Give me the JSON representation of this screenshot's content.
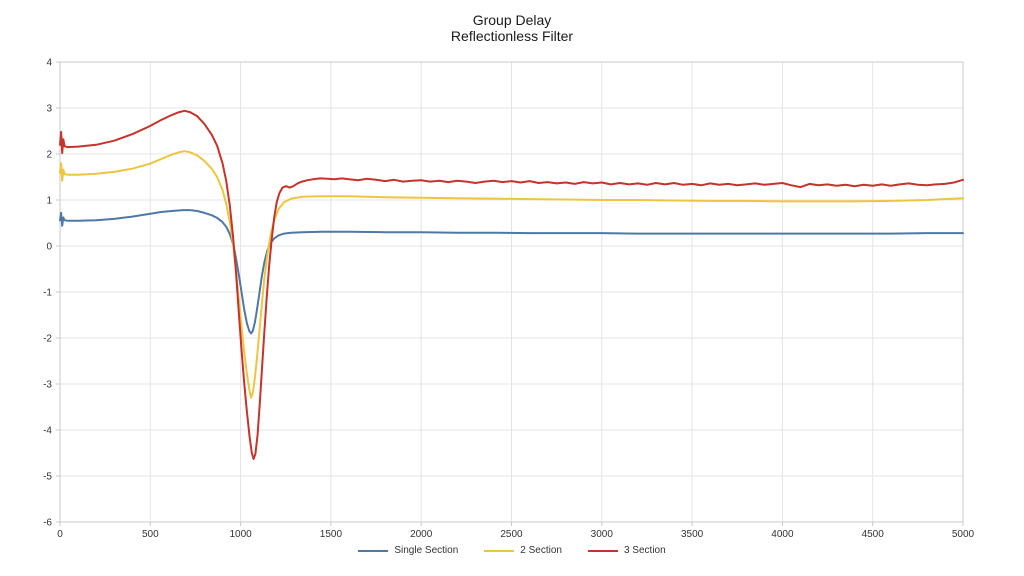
{
  "title": {
    "line1": "Group Delay",
    "line2": "Reflectionless Filter"
  },
  "colors": {
    "grid": "#e4e4e4",
    "axis_border": "#c9c9c9",
    "tick_label": "#333333",
    "title_text": "#1a1a1a",
    "series_blue": "#4e79a7",
    "series_yellow": "#edc53f",
    "series_red": "#c5332d"
  },
  "chart_data": {
    "type": "line",
    "title": "Group Delay",
    "subtitle": "Reflectionless Filter",
    "xlabel": "",
    "ylabel": "",
    "xlim": [
      0,
      5000
    ],
    "ylim": [
      -6,
      4
    ],
    "x_ticks": [
      0,
      500,
      1000,
      1500,
      2000,
      2500,
      3000,
      3500,
      4000,
      4500,
      5000
    ],
    "y_ticks": [
      -6,
      -5,
      -4,
      -3,
      -2,
      -1,
      0,
      1,
      2,
      3,
      4
    ],
    "grid": true,
    "legend_position": "bottom",
    "series": [
      {
        "name": "Single Section",
        "color": "#4e79a7",
        "points": [
          [
            0,
            0.56
          ],
          [
            6,
            0.72
          ],
          [
            12,
            0.44
          ],
          [
            18,
            0.62
          ],
          [
            25,
            0.56
          ],
          [
            40,
            0.55
          ],
          [
            100,
            0.55
          ],
          [
            200,
            0.56
          ],
          [
            300,
            0.59
          ],
          [
            400,
            0.64
          ],
          [
            500,
            0.7
          ],
          [
            560,
            0.74
          ],
          [
            620,
            0.76
          ],
          [
            680,
            0.78
          ],
          [
            720,
            0.78
          ],
          [
            760,
            0.76
          ],
          [
            800,
            0.72
          ],
          [
            840,
            0.67
          ],
          [
            870,
            0.61
          ],
          [
            900,
            0.52
          ],
          [
            920,
            0.42
          ],
          [
            940,
            0.26
          ],
          [
            960,
            0.02
          ],
          [
            975,
            -0.28
          ],
          [
            990,
            -0.62
          ],
          [
            1005,
            -1.0
          ],
          [
            1020,
            -1.38
          ],
          [
            1035,
            -1.68
          ],
          [
            1048,
            -1.85
          ],
          [
            1058,
            -1.9
          ],
          [
            1068,
            -1.84
          ],
          [
            1080,
            -1.65
          ],
          [
            1092,
            -1.35
          ],
          [
            1105,
            -1.0
          ],
          [
            1118,
            -0.65
          ],
          [
            1132,
            -0.35
          ],
          [
            1148,
            -0.1
          ],
          [
            1165,
            0.06
          ],
          [
            1185,
            0.16
          ],
          [
            1210,
            0.23
          ],
          [
            1240,
            0.27
          ],
          [
            1280,
            0.29
          ],
          [
            1340,
            0.3
          ],
          [
            1450,
            0.31
          ],
          [
            1600,
            0.31
          ],
          [
            1800,
            0.3
          ],
          [
            2000,
            0.3
          ],
          [
            2200,
            0.29
          ],
          [
            2400,
            0.29
          ],
          [
            2600,
            0.28
          ],
          [
            2800,
            0.28
          ],
          [
            3000,
            0.28
          ],
          [
            3200,
            0.27
          ],
          [
            3400,
            0.27
          ],
          [
            3600,
            0.27
          ],
          [
            3800,
            0.27
          ],
          [
            4000,
            0.27
          ],
          [
            4200,
            0.27
          ],
          [
            4400,
            0.27
          ],
          [
            4600,
            0.27
          ],
          [
            4800,
            0.28
          ],
          [
            5000,
            0.28
          ]
        ]
      },
      {
        "name": "2 Section",
        "color": "#edc53f",
        "points": [
          [
            0,
            1.58
          ],
          [
            6,
            1.8
          ],
          [
            12,
            1.42
          ],
          [
            18,
            1.66
          ],
          [
            25,
            1.57
          ],
          [
            40,
            1.55
          ],
          [
            100,
            1.55
          ],
          [
            200,
            1.57
          ],
          [
            300,
            1.61
          ],
          [
            400,
            1.68
          ],
          [
            500,
            1.79
          ],
          [
            560,
            1.89
          ],
          [
            620,
            1.99
          ],
          [
            660,
            2.04
          ],
          [
            690,
            2.06
          ],
          [
            720,
            2.04
          ],
          [
            760,
            1.97
          ],
          [
            800,
            1.85
          ],
          [
            840,
            1.68
          ],
          [
            870,
            1.5
          ],
          [
            900,
            1.22
          ],
          [
            920,
            0.92
          ],
          [
            940,
            0.52
          ],
          [
            958,
            0.05
          ],
          [
            975,
            -0.55
          ],
          [
            990,
            -1.15
          ],
          [
            1005,
            -1.75
          ],
          [
            1020,
            -2.3
          ],
          [
            1035,
            -2.78
          ],
          [
            1048,
            -3.12
          ],
          [
            1058,
            -3.3
          ],
          [
            1068,
            -3.18
          ],
          [
            1080,
            -2.85
          ],
          [
            1092,
            -2.38
          ],
          [
            1105,
            -1.82
          ],
          [
            1118,
            -1.25
          ],
          [
            1132,
            -0.7
          ],
          [
            1148,
            -0.2
          ],
          [
            1165,
            0.22
          ],
          [
            1185,
            0.55
          ],
          [
            1210,
            0.8
          ],
          [
            1240,
            0.95
          ],
          [
            1280,
            1.03
          ],
          [
            1340,
            1.07
          ],
          [
            1450,
            1.08
          ],
          [
            1600,
            1.08
          ],
          [
            1800,
            1.06
          ],
          [
            2000,
            1.05
          ],
          [
            2200,
            1.04
          ],
          [
            2400,
            1.03
          ],
          [
            2600,
            1.02
          ],
          [
            2800,
            1.01
          ],
          [
            3000,
            1.0
          ],
          [
            3200,
            1.0
          ],
          [
            3400,
            0.99
          ],
          [
            3600,
            0.98
          ],
          [
            3800,
            0.98
          ],
          [
            4000,
            0.97
          ],
          [
            4200,
            0.97
          ],
          [
            4400,
            0.97
          ],
          [
            4600,
            0.98
          ],
          [
            4800,
            1.0
          ],
          [
            5000,
            1.04
          ]
        ]
      },
      {
        "name": "3 Section",
        "color": "#c5332d",
        "points": [
          [
            0,
            2.2
          ],
          [
            6,
            2.48
          ],
          [
            12,
            2.02
          ],
          [
            18,
            2.32
          ],
          [
            25,
            2.17
          ],
          [
            40,
            2.15
          ],
          [
            100,
            2.16
          ],
          [
            200,
            2.2
          ],
          [
            300,
            2.29
          ],
          [
            400,
            2.43
          ],
          [
            500,
            2.61
          ],
          [
            560,
            2.74
          ],
          [
            620,
            2.85
          ],
          [
            660,
            2.91
          ],
          [
            690,
            2.94
          ],
          [
            720,
            2.91
          ],
          [
            760,
            2.82
          ],
          [
            800,
            2.65
          ],
          [
            840,
            2.42
          ],
          [
            870,
            2.18
          ],
          [
            900,
            1.8
          ],
          [
            920,
            1.42
          ],
          [
            940,
            0.88
          ],
          [
            958,
            0.22
          ],
          [
            975,
            -0.6
          ],
          [
            990,
            -1.45
          ],
          [
            1005,
            -2.25
          ],
          [
            1020,
            -2.98
          ],
          [
            1035,
            -3.6
          ],
          [
            1050,
            -4.15
          ],
          [
            1062,
            -4.5
          ],
          [
            1072,
            -4.63
          ],
          [
            1082,
            -4.52
          ],
          [
            1094,
            -4.1
          ],
          [
            1106,
            -3.45
          ],
          [
            1118,
            -2.7
          ],
          [
            1130,
            -1.95
          ],
          [
            1144,
            -1.15
          ],
          [
            1158,
            -0.45
          ],
          [
            1172,
            0.15
          ],
          [
            1186,
            0.62
          ],
          [
            1200,
            0.95
          ],
          [
            1215,
            1.15
          ],
          [
            1232,
            1.27
          ],
          [
            1252,
            1.3
          ],
          [
            1272,
            1.27
          ],
          [
            1292,
            1.3
          ],
          [
            1315,
            1.36
          ],
          [
            1340,
            1.4
          ],
          [
            1370,
            1.43
          ],
          [
            1400,
            1.45
          ],
          [
            1440,
            1.47
          ],
          [
            1480,
            1.46
          ],
          [
            1520,
            1.45
          ],
          [
            1560,
            1.47
          ],
          [
            1600,
            1.45
          ],
          [
            1650,
            1.43
          ],
          [
            1700,
            1.46
          ],
          [
            1750,
            1.44
          ],
          [
            1800,
            1.41
          ],
          [
            1850,
            1.44
          ],
          [
            1900,
            1.4
          ],
          [
            1950,
            1.42
          ],
          [
            2000,
            1.43
          ],
          [
            2050,
            1.4
          ],
          [
            2100,
            1.42
          ],
          [
            2150,
            1.39
          ],
          [
            2200,
            1.42
          ],
          [
            2250,
            1.4
          ],
          [
            2300,
            1.37
          ],
          [
            2350,
            1.4
          ],
          [
            2400,
            1.42
          ],
          [
            2450,
            1.39
          ],
          [
            2500,
            1.41
          ],
          [
            2550,
            1.38
          ],
          [
            2600,
            1.41
          ],
          [
            2650,
            1.37
          ],
          [
            2700,
            1.39
          ],
          [
            2750,
            1.36
          ],
          [
            2800,
            1.38
          ],
          [
            2850,
            1.35
          ],
          [
            2900,
            1.39
          ],
          [
            2950,
            1.36
          ],
          [
            3000,
            1.38
          ],
          [
            3050,
            1.34
          ],
          [
            3100,
            1.37
          ],
          [
            3150,
            1.34
          ],
          [
            3200,
            1.36
          ],
          [
            3250,
            1.33
          ],
          [
            3300,
            1.37
          ],
          [
            3350,
            1.34
          ],
          [
            3400,
            1.37
          ],
          [
            3450,
            1.33
          ],
          [
            3500,
            1.35
          ],
          [
            3550,
            1.32
          ],
          [
            3600,
            1.36
          ],
          [
            3650,
            1.33
          ],
          [
            3700,
            1.35
          ],
          [
            3750,
            1.32
          ],
          [
            3800,
            1.34
          ],
          [
            3850,
            1.36
          ],
          [
            3900,
            1.33
          ],
          [
            3950,
            1.35
          ],
          [
            4000,
            1.37
          ],
          [
            4050,
            1.32
          ],
          [
            4100,
            1.28
          ],
          [
            4150,
            1.35
          ],
          [
            4200,
            1.32
          ],
          [
            4250,
            1.34
          ],
          [
            4300,
            1.31
          ],
          [
            4350,
            1.33
          ],
          [
            4400,
            1.3
          ],
          [
            4450,
            1.33
          ],
          [
            4500,
            1.31
          ],
          [
            4550,
            1.34
          ],
          [
            4600,
            1.31
          ],
          [
            4650,
            1.34
          ],
          [
            4700,
            1.36
          ],
          [
            4750,
            1.33
          ],
          [
            4800,
            1.32
          ],
          [
            4850,
            1.34
          ],
          [
            4900,
            1.35
          ],
          [
            4950,
            1.38
          ],
          [
            5000,
            1.44
          ]
        ]
      }
    ]
  }
}
